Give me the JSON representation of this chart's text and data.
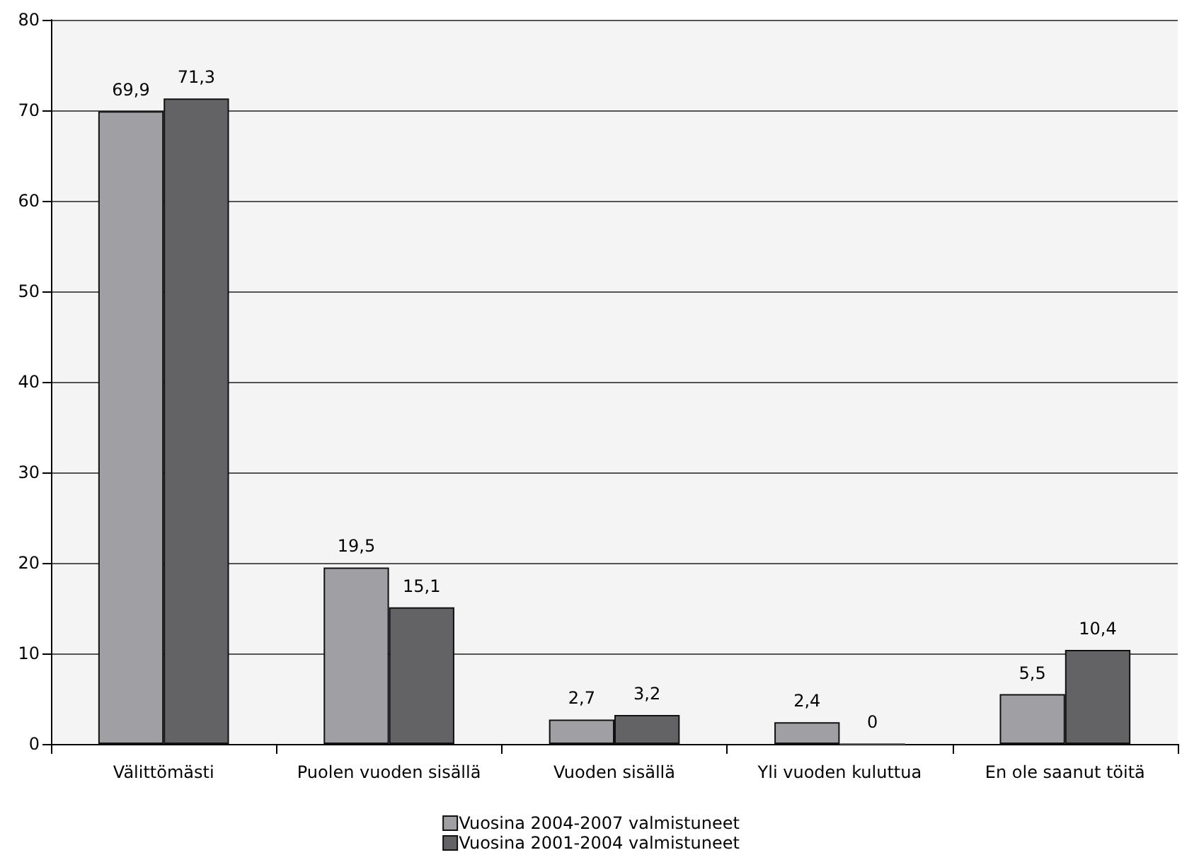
{
  "chart_data": {
    "type": "bar",
    "categories": [
      "Välittömästi",
      "Puolen vuoden sisällä",
      "Vuoden sisällä",
      "Yli vuoden kuluttua",
      "En ole saanut töitä"
    ],
    "series": [
      {
        "name": "Vuosina 2004-2007 valmistuneet",
        "color": "#a0a0a4",
        "values": [
          69.9,
          19.5,
          2.7,
          2.4,
          5.5
        ],
        "value_labels": [
          "69,9",
          "19,5",
          "2,7",
          "2,4",
          "5,5"
        ]
      },
      {
        "name": "Vuosina 2001-2004 valmistuneet",
        "color": "#636366",
        "values": [
          71.3,
          15.1,
          3.2,
          0,
          10.4
        ],
        "value_labels": [
          "71,3",
          "15,1",
          "3,2",
          "0",
          "10,4"
        ]
      }
    ],
    "ylim": [
      0,
      80
    ],
    "yticks": [
      0,
      10,
      20,
      30,
      40,
      50,
      60,
      70,
      80
    ],
    "grid": "y",
    "legend": "bottom"
  }
}
